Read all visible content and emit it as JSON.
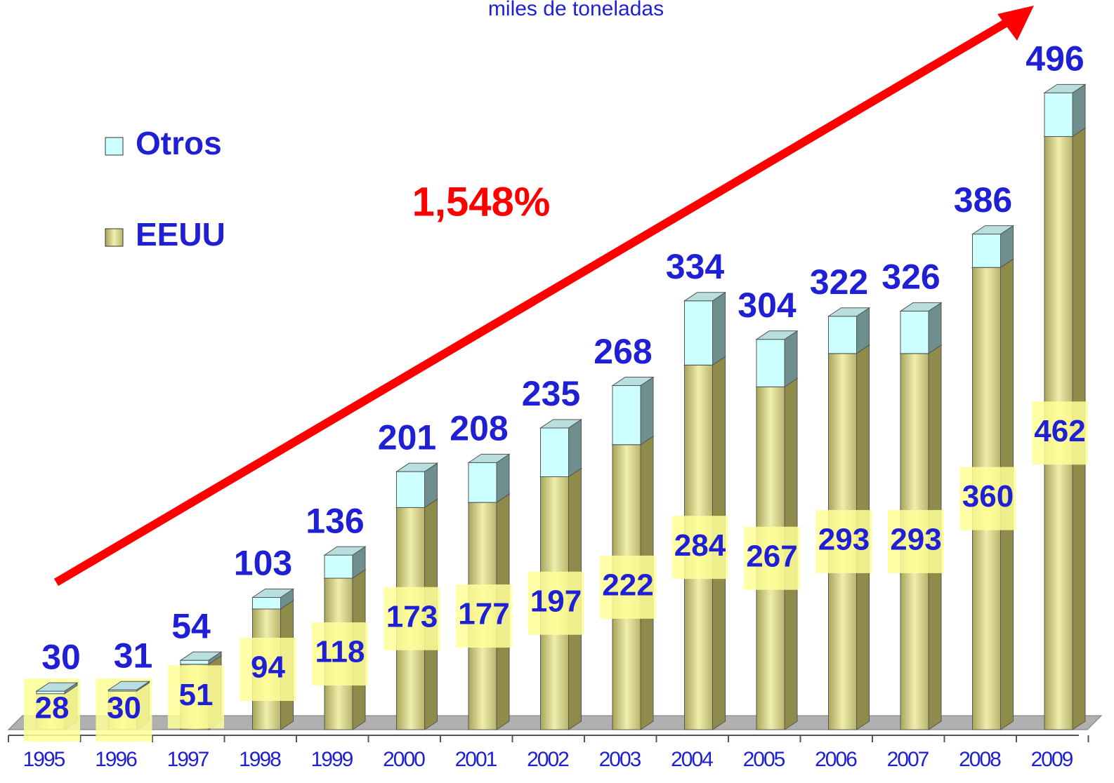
{
  "chart_data": {
    "type": "bar3d_stacked",
    "title": "miles de toneladas",
    "annotation": "1,548%",
    "categories": [
      "1995",
      "1996",
      "1997",
      "1998",
      "1999",
      "2000",
      "2001",
      "2002",
      "2003",
      "2004",
      "2005",
      "2006",
      "2007",
      "2008",
      "2009"
    ],
    "series": [
      {
        "name": "EEUU",
        "color": "#d9d68c",
        "values": [
          28,
          30,
          51,
          94,
          118,
          173,
          177,
          197,
          222,
          284,
          267,
          293,
          293,
          360,
          462
        ]
      },
      {
        "name": "Otros",
        "color": "#ccffff",
        "values": [
          2,
          1,
          3,
          9,
          18,
          28,
          31,
          38,
          46,
          50,
          37,
          29,
          33,
          26,
          34
        ]
      }
    ],
    "totals": [
      30,
      31,
      54,
      103,
      136,
      201,
      208,
      235,
      268,
      334,
      304,
      322,
      326,
      386,
      496
    ],
    "ylim": [
      0,
      500
    ]
  }
}
